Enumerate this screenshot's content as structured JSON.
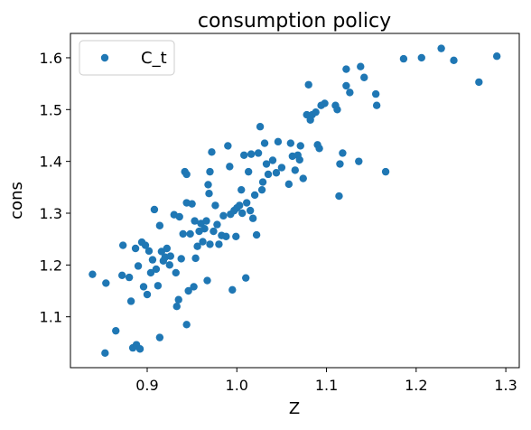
{
  "chart_data": {
    "type": "scatter",
    "title": "consumption policy",
    "x_label": "Z",
    "y_label": "cons",
    "xlim": [
      0.8144,
      1.315
    ],
    "ylim": [
      1.0018,
      1.647
    ],
    "xticks": [
      0.9,
      {
        "value": 1,
        "label": "1.0"
      },
      1.1,
      1.2,
      1.3
    ],
    "yticks": [
      1.1,
      1.2,
      1.3,
      1.4,
      1.5,
      1.6
    ],
    "legend": "upper left",
    "grid": false,
    "series": [
      {
        "name": "C_t",
        "color": "#1f77b4",
        "x": [
          0.839,
          0.854,
          0.853,
          0.865,
          0.873,
          0.872,
          0.88,
          0.882,
          0.884,
          0.888,
          0.887,
          0.89,
          0.892,
          0.894,
          0.896,
          0.898,
          0.9,
          0.902,
          0.904,
          0.906,
          0.908,
          0.91,
          0.912,
          0.914,
          0.914,
          0.916,
          0.918,
          0.92,
          0.922,
          0.925,
          0.926,
          0.93,
          0.932,
          0.933,
          0.935,
          0.936,
          0.938,
          0.94,
          0.942,
          0.944,
          0.944,
          0.944,
          0.946,
          0.948,
          0.95,
          0.952,
          0.953,
          0.954,
          0.956,
          0.958,
          0.96,
          0.962,
          0.964,
          0.966,
          0.967,
          0.968,
          0.969,
          0.97,
          0.97,
          0.972,
          0.974,
          0.976,
          0.978,
          0.98,
          0.983,
          0.985,
          0.988,
          0.99,
          0.992,
          0.993,
          0.995,
          0.997,
          0.999,
          1.0,
          1.003,
          1.005,
          1.006,
          1.008,
          1.01,
          1.011,
          1.013,
          1.015,
          1.016,
          1.018,
          1.02,
          1.022,
          1.024,
          1.026,
          1.028,
          1.029,
          1.031,
          1.033,
          1.035,
          1.04,
          1.044,
          1.046,
          1.05,
          1.058,
          1.06,
          1.062,
          1.065,
          1.068,
          1.07,
          1.071,
          1.074,
          1.078,
          1.08,
          1.082,
          1.084,
          1.088,
          1.09,
          1.092,
          1.094,
          1.098,
          1.11,
          1.112,
          1.114,
          1.115,
          1.118,
          1.122,
          1.122,
          1.126,
          1.136,
          1.138,
          1.142,
          1.155,
          1.156,
          1.166,
          1.186,
          1.206,
          1.228,
          1.242,
          1.27,
          1.29
        ],
        "values": [
          1.182,
          1.165,
          1.03,
          1.073,
          1.238,
          1.18,
          1.176,
          1.13,
          1.04,
          1.046,
          1.232,
          1.198,
          1.038,
          1.244,
          1.158,
          1.238,
          1.143,
          1.227,
          1.185,
          1.21,
          1.307,
          1.192,
          1.16,
          1.06,
          1.276,
          1.226,
          1.208,
          1.215,
          1.232,
          1.2,
          1.217,
          1.297,
          1.185,
          1.12,
          1.133,
          1.293,
          1.212,
          1.26,
          1.38,
          1.375,
          1.085,
          1.32,
          1.15,
          1.26,
          1.318,
          1.158,
          1.285,
          1.213,
          1.236,
          1.265,
          1.28,
          1.245,
          1.27,
          1.285,
          1.17,
          1.355,
          1.338,
          1.38,
          1.24,
          1.418,
          1.265,
          1.315,
          1.278,
          1.24,
          1.257,
          1.295,
          1.255,
          1.43,
          1.39,
          1.298,
          1.152,
          1.305,
          1.255,
          1.31,
          1.315,
          1.345,
          1.3,
          1.412,
          1.175,
          1.32,
          1.38,
          1.305,
          1.414,
          1.29,
          1.335,
          1.258,
          1.416,
          1.467,
          1.345,
          1.36,
          1.435,
          1.395,
          1.375,
          1.402,
          1.378,
          1.438,
          1.388,
          1.356,
          1.435,
          1.41,
          1.383,
          1.412,
          1.403,
          1.43,
          1.367,
          1.49,
          1.548,
          1.48,
          1.49,
          1.495,
          1.432,
          1.425,
          1.508,
          1.512,
          1.508,
          1.5,
          1.333,
          1.395,
          1.416,
          1.578,
          1.546,
          1.533,
          1.4,
          1.583,
          1.562,
          1.53,
          1.508,
          1.38,
          1.598,
          1.6,
          1.618,
          1.595,
          1.553,
          1.603
        ]
      }
    ]
  }
}
